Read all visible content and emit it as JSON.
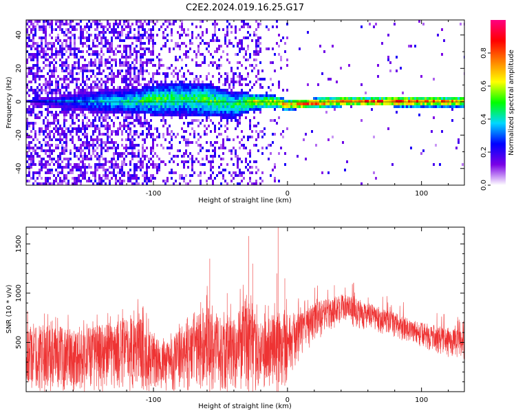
{
  "figure": {
    "title": "C2E2.2024.019.16.25.G17"
  },
  "chart_data": [
    {
      "type": "heatmap",
      "xlabel": "Height of straight line (km)",
      "ylabel": "Frequency (Hz)",
      "xlim": [
        -195,
        132
      ],
      "ylim": [
        -50,
        49
      ],
      "xticks": [
        -100,
        0,
        100
      ],
      "xtick_labels": [
        "-100",
        "0",
        "100"
      ],
      "yticks": [
        -40,
        -20,
        0,
        20,
        40
      ],
      "ytick_labels": [
        "-40",
        "-20",
        "0",
        "20",
        "40"
      ],
      "colorbar": {
        "label": "Normalized spectral amplitude",
        "range": [
          0,
          1
        ],
        "ticks": [
          0.0,
          0.2,
          0.4,
          0.6,
          0.8
        ],
        "tick_labels": [
          "0.0",
          "0.2",
          "0.4",
          "0.6",
          "0.8"
        ],
        "colormap": [
          "#ffffff",
          "#7a00e6",
          "#0000ff",
          "#00d8ff",
          "#00ff00",
          "#ffff00",
          "#ff8000",
          "#ff0000",
          "#ff0080"
        ]
      },
      "band_profile": {
        "x": [
          -195,
          -140,
          -120,
          -100,
          -80,
          -60,
          -40,
          -25,
          -10,
          0,
          20,
          40,
          60,
          80,
          100,
          120,
          132
        ],
        "center_frequency": [
          0,
          0,
          0,
          1,
          2,
          1,
          -2,
          0,
          0,
          -2,
          -1,
          0,
          0,
          0,
          0,
          0,
          0
        ],
        "half_width": [
          0,
          6,
          6,
          8,
          9,
          9,
          7,
          4,
          3,
          2,
          2,
          2,
          1.5,
          2,
          2,
          2,
          2
        ],
        "peak_amplitude": [
          0.25,
          0.4,
          0.45,
          0.55,
          0.5,
          0.55,
          0.5,
          0.65,
          0.7,
          0.8,
          0.85,
          0.85,
          0.9,
          0.9,
          0.85,
          0.85,
          0.8
        ]
      }
    },
    {
      "type": "line",
      "xlabel": "Height of straight line (km)",
      "ylabel": "SNR (10 * v/v)",
      "xlim": [
        -195,
        132
      ],
      "ylim": [
        0,
        1670
      ],
      "xticks": [
        -100,
        0,
        100
      ],
      "xtick_labels": [
        "-100",
        "0",
        "100"
      ],
      "yticks": [
        500,
        1000,
        1500
      ],
      "ytick_labels": [
        "500",
        "1000",
        "1500"
      ],
      "series": [
        {
          "color": "#ee3333",
          "envelope": {
            "x": [
              -195,
              -160,
              -130,
              -110,
              -100,
              -90,
              -80,
              -70,
              -60,
              -50,
              -40,
              -30,
              -25,
              -20,
              -10,
              -5,
              0,
              10,
              20,
              30,
              40,
              50,
              60,
              80,
              100,
              120,
              132
            ],
            "upper": [
              700,
              650,
              700,
              800,
              550,
              500,
              650,
              750,
              900,
              750,
              750,
              1000,
              800,
              700,
              800,
              900,
              800,
              800,
              900,
              950,
              1000,
              950,
              900,
              800,
              700,
              650,
              620
            ],
            "lower": [
              0,
              0,
              0,
              0,
              0,
              0,
              0,
              0,
              0,
              0,
              0,
              0,
              0,
              0,
              0,
              0,
              100,
              350,
              500,
              600,
              700,
              650,
              620,
              550,
              450,
              350,
              320
            ]
          },
          "spikes": [
            {
              "x": -58,
              "y": 1350
            },
            {
              "x": -45,
              "y": 1000
            },
            {
              "x": -29,
              "y": 1580
            },
            {
              "x": -26,
              "y": 1300
            },
            {
              "x": -8,
              "y": 1200
            },
            {
              "x": -7,
              "y": 1670
            },
            {
              "x": -2,
              "y": 1150
            },
            {
              "x": 35,
              "y": 1080
            }
          ]
        }
      ]
    }
  ]
}
